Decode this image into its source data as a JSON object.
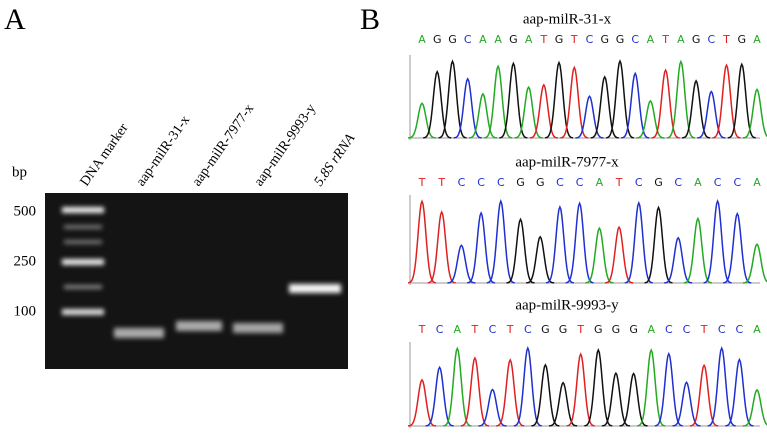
{
  "panel_a": {
    "label": "A",
    "unit": "bp",
    "sizes": [
      "500",
      "250",
      "100"
    ],
    "lanes": [
      "DNA marker",
      "aap-milR-31-x",
      "aap-milR-7977-x",
      "aap-milR-9993-y",
      "5.8S rRNA"
    ]
  },
  "panel_b": {
    "label": "B",
    "traces": [
      {
        "title": "aap-milR-31-x",
        "bases": [
          "A",
          "G",
          "G",
          "C",
          "A",
          "A",
          "G",
          "A",
          "T",
          "G",
          "T",
          "C",
          "G",
          "G",
          "C",
          "A",
          "T",
          "A",
          "G",
          "C",
          "T",
          "G",
          "A"
        ]
      },
      {
        "title": "aap-milR-7977-x",
        "bases": [
          "T",
          "T",
          "C",
          "C",
          "C",
          "G",
          "G",
          "C",
          "C",
          "A",
          "T",
          "C",
          "G",
          "C",
          "A",
          "C",
          "C",
          "A"
        ]
      },
      {
        "title": "aap-milR-9993-y",
        "bases": [
          "T",
          "C",
          "A",
          "T",
          "C",
          "T",
          "C",
          "G",
          "G",
          "T",
          "G",
          "G",
          "G",
          "A",
          "C",
          "C",
          "T",
          "C",
          "C",
          "A"
        ]
      }
    ]
  }
}
